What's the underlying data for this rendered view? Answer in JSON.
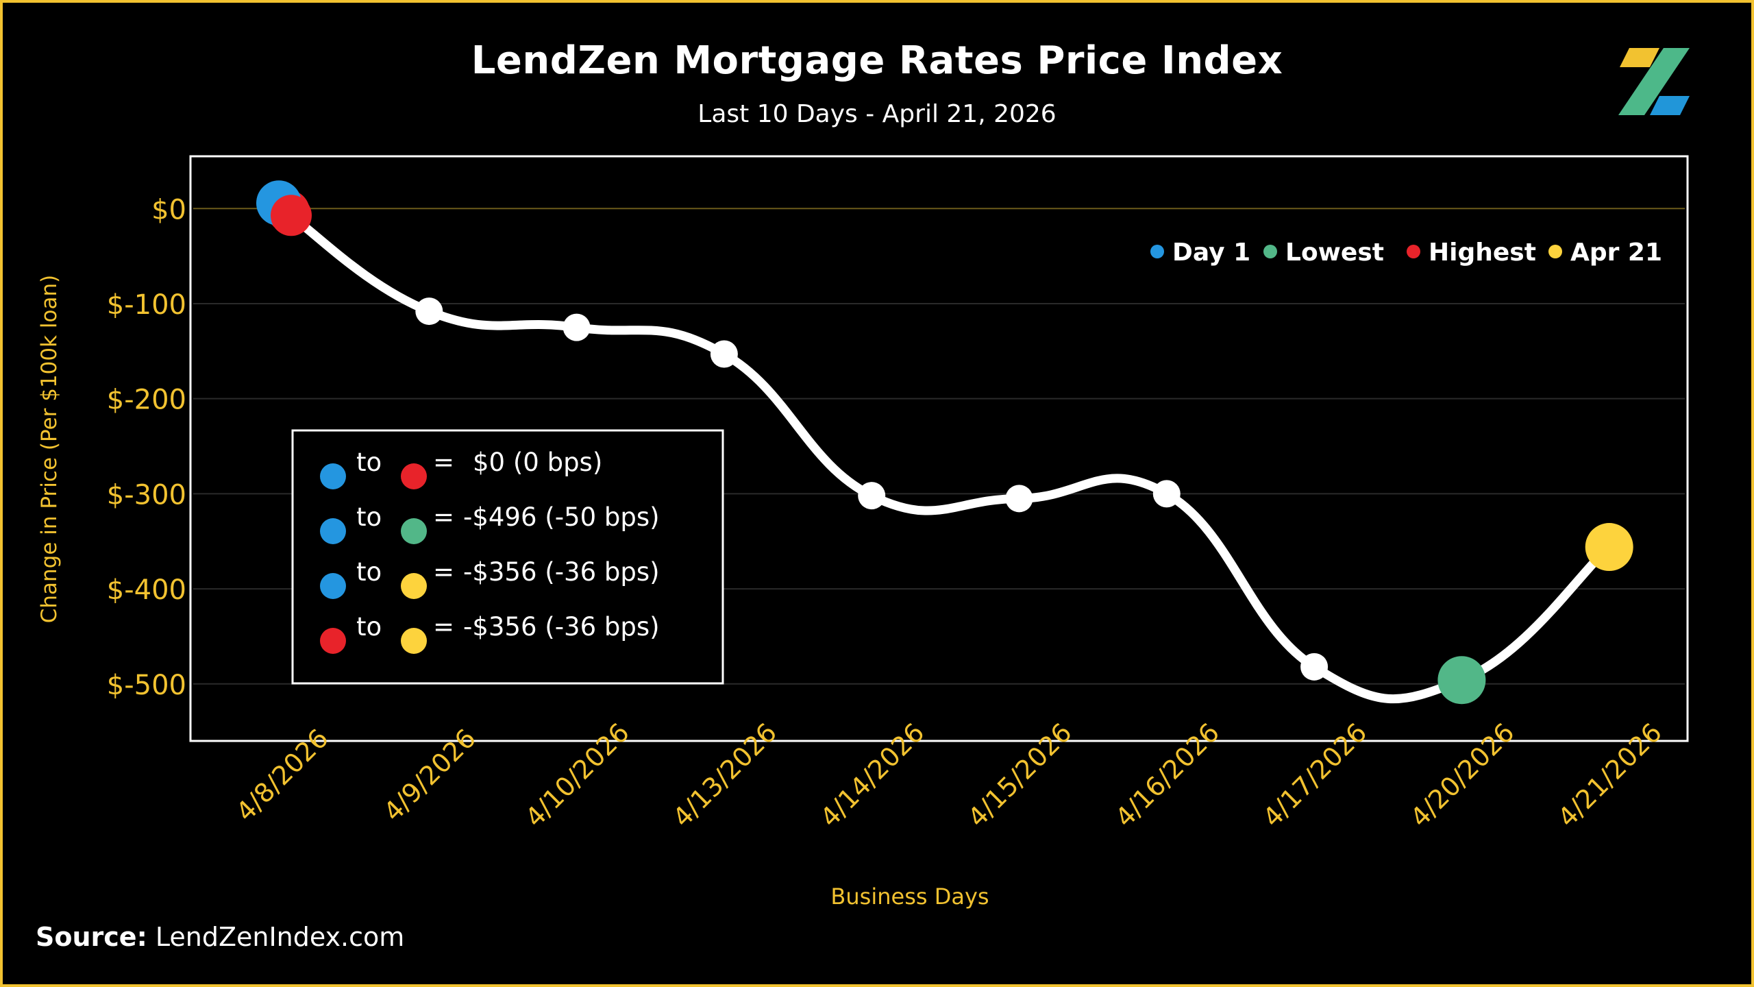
{
  "header": {
    "title": "LendZen Mortgage Rates Price Index",
    "subtitle": "Last 10 Days - April 21, 2026"
  },
  "logo": {
    "icon": "lendzen-z-logo",
    "colors": [
      "#f2c230",
      "#4db889",
      "#2196d9"
    ]
  },
  "colors": {
    "accent": "#f2c230",
    "line": "#ffffff",
    "day1": "#2496e0",
    "lowest": "#52b788",
    "highest": "#e8232a",
    "latest": "#fdd33d",
    "background": "#000000"
  },
  "chart_data": {
    "type": "line",
    "title": "LendZen Mortgage Rates Price Index",
    "subtitle": "Last 10 Days - April 21, 2026",
    "xlabel": "Business Days",
    "ylabel": "Change in Price (Per $100k loan)",
    "categories": [
      "4/8/2026",
      "4/9/2026",
      "4/10/2026",
      "4/13/2026",
      "4/14/2026",
      "4/15/2026",
      "4/16/2026",
      "4/17/2026",
      "4/20/2026",
      "4/21/2026"
    ],
    "series": [
      {
        "values": [
          0,
          -108,
          -125,
          -153,
          -302,
          -305,
          -300,
          -482,
          -496,
          -356
        ]
      }
    ],
    "ylim": [
      -560,
      55
    ],
    "yticks": [
      0,
      -100,
      -200,
      -300,
      -400,
      -500
    ],
    "ytick_labels": [
      "$0",
      "$-100",
      "$-200",
      "$-300",
      "$-400",
      "$-500"
    ],
    "grid": true,
    "legend": {
      "placement": "top-right",
      "entries": [
        {
          "label": "Day 1",
          "color": "#2496e0"
        },
        {
          "label": "Lowest",
          "color": "#52b788"
        },
        {
          "label": "Highest",
          "color": "#e8232a"
        },
        {
          "label": "Apr 21",
          "color": "#fdd33d"
        }
      ]
    },
    "highlights": [
      {
        "name": "highest",
        "index": 0,
        "color": "#e8232a"
      },
      {
        "name": "day1",
        "index": 0,
        "color": "#2496e0"
      },
      {
        "name": "lowest",
        "index": 8,
        "color": "#52b788"
      },
      {
        "name": "latest",
        "index": 9,
        "color": "#fdd33d"
      }
    ],
    "summary_box": {
      "rows": [
        {
          "from": "#2496e0",
          "to_color": "#e8232a",
          "to": "to",
          "eq": "=",
          "value": "$0 (0 bps)"
        },
        {
          "from": "#2496e0",
          "to_color": "#52b788",
          "to": "to",
          "eq": "=",
          "value": "-$496 (-50 bps)"
        },
        {
          "from": "#2496e0",
          "to_color": "#fdd33d",
          "to": "to",
          "eq": "=",
          "value": "-$356 (-36 bps)"
        },
        {
          "from": "#e8232a",
          "to_color": "#fdd33d",
          "to": "to",
          "eq": "=",
          "value": "-$356 (-36 bps)"
        }
      ]
    }
  },
  "footer": {
    "source_label": "Source:",
    "source_value": "LendZenIndex.com"
  }
}
